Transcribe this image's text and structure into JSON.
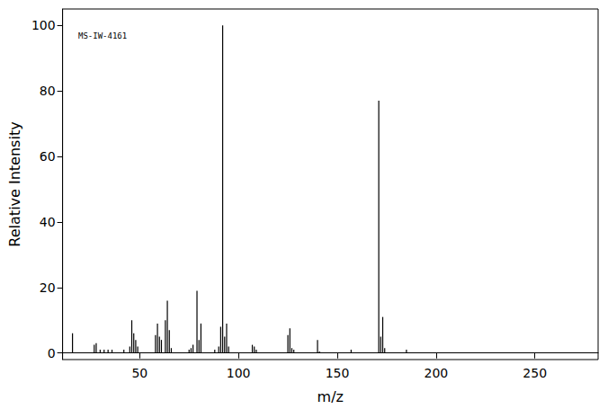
{
  "chart_data": {
    "type": "bar",
    "title": "MS-IW-4161",
    "x_label": "m/z",
    "y_label": "Relative Intensity",
    "x": [
      16,
      27,
      28,
      30,
      32,
      34,
      36,
      42,
      45,
      46,
      47,
      48,
      49,
      58,
      59,
      60,
      61,
      63,
      64,
      65,
      66,
      75,
      76,
      77,
      79,
      80,
      81,
      88,
      90,
      91,
      92,
      93,
      94,
      95,
      107,
      108,
      109,
      125,
      126,
      127,
      128,
      140,
      141,
      157,
      171,
      172,
      173,
      174,
      185
    ],
    "values": [
      6,
      2.5,
      3,
      1,
      1,
      1,
      1,
      1,
      2,
      10,
      6,
      4,
      2,
      5.5,
      9,
      5,
      4,
      10,
      16,
      7,
      1.5,
      1,
      1.5,
      2.5,
      19,
      4,
      9,
      1,
      2,
      8,
      100,
      5,
      9,
      2,
      2.5,
      2,
      1,
      5.5,
      7.5,
      1.5,
      1,
      4,
      0.5,
      1,
      77,
      5,
      11,
      1.5,
      1
    ],
    "color": "#000000",
    "xlim": [
      11,
      282
    ],
    "xticks": [
      50,
      100,
      150,
      200,
      250
    ],
    "ylim": [
      -2,
      105
    ],
    "yticks": [
      0,
      20,
      40,
      60,
      80,
      100
    ],
    "grid": false
  }
}
